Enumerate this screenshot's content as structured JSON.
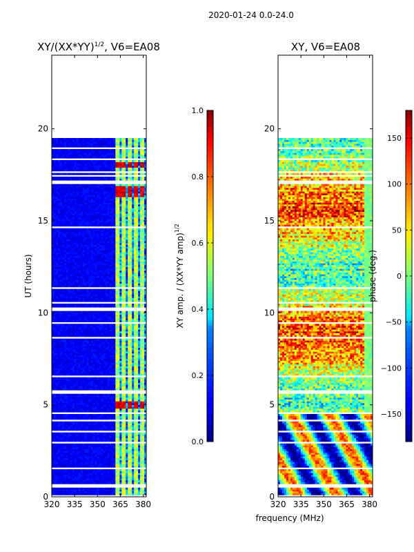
{
  "figure": {
    "suptitle": "2020-01-24 0.0-24.0",
    "shared_xlabel": "frequency (MHz)"
  },
  "chart_data": [
    {
      "type": "heatmap",
      "title_main": "XY/(XX*YY)",
      "title_exp": "1/2",
      "title_rest": ", V6=EA08",
      "ylabel": "UT (hours)",
      "xlim": [
        320,
        382
      ],
      "ylim": [
        0,
        24
      ],
      "xticks": [
        "320",
        "335",
        "350",
        "365",
        "380"
      ],
      "xtick_values": [
        320,
        335,
        350,
        365,
        380
      ],
      "yticks": [
        "0",
        "5",
        "10",
        "15",
        "20"
      ],
      "ytick_values": [
        0,
        5,
        10,
        15,
        20
      ],
      "data_time_range": [
        0.1,
        19.5
      ],
      "colorbar": {
        "label_main": "XY amp. / (XX*YY amp)",
        "label_exp": "1/2",
        "range": [
          0.0,
          1.0
        ],
        "ticks": [
          "0.0",
          "0.2",
          "0.4",
          "0.6",
          "0.8",
          "1.0"
        ],
        "tick_values": [
          0.0,
          0.2,
          0.4,
          0.6,
          0.8,
          1.0
        ],
        "colormap": "jet"
      },
      "high_amp_channels_mhz": [
        363,
        366,
        371,
        375,
        379
      ],
      "high_amp_time_bands_hours": [
        [
          4.7,
          5.1
        ],
        [
          16.2,
          16.8
        ],
        [
          17.8,
          18.1
        ]
      ]
    },
    {
      "type": "heatmap",
      "title": "XY, V6=EA08",
      "xlim": [
        320,
        382
      ],
      "ylim": [
        0,
        24
      ],
      "xticks": [
        "320",
        "335",
        "350",
        "365",
        "380"
      ],
      "xtick_values": [
        320,
        335,
        350,
        365,
        380
      ],
      "yticks": [
        "0",
        "5",
        "10",
        "15",
        "20"
      ],
      "ytick_values": [
        0,
        5,
        10,
        15,
        20
      ],
      "data_time_range": [
        0.1,
        19.5
      ],
      "colorbar": {
        "label": "phase (deg.)",
        "range": [
          -180,
          180
        ],
        "ticks": [
          "−150",
          "−100",
          "−50",
          "0",
          "50",
          "100",
          "150"
        ],
        "tick_values": [
          -150,
          -100,
          -50,
          0,
          50,
          100,
          150
        ],
        "colormap": "jet"
      }
    }
  ],
  "colors": {
    "axes": "#000000",
    "gap": "#ffffff"
  }
}
